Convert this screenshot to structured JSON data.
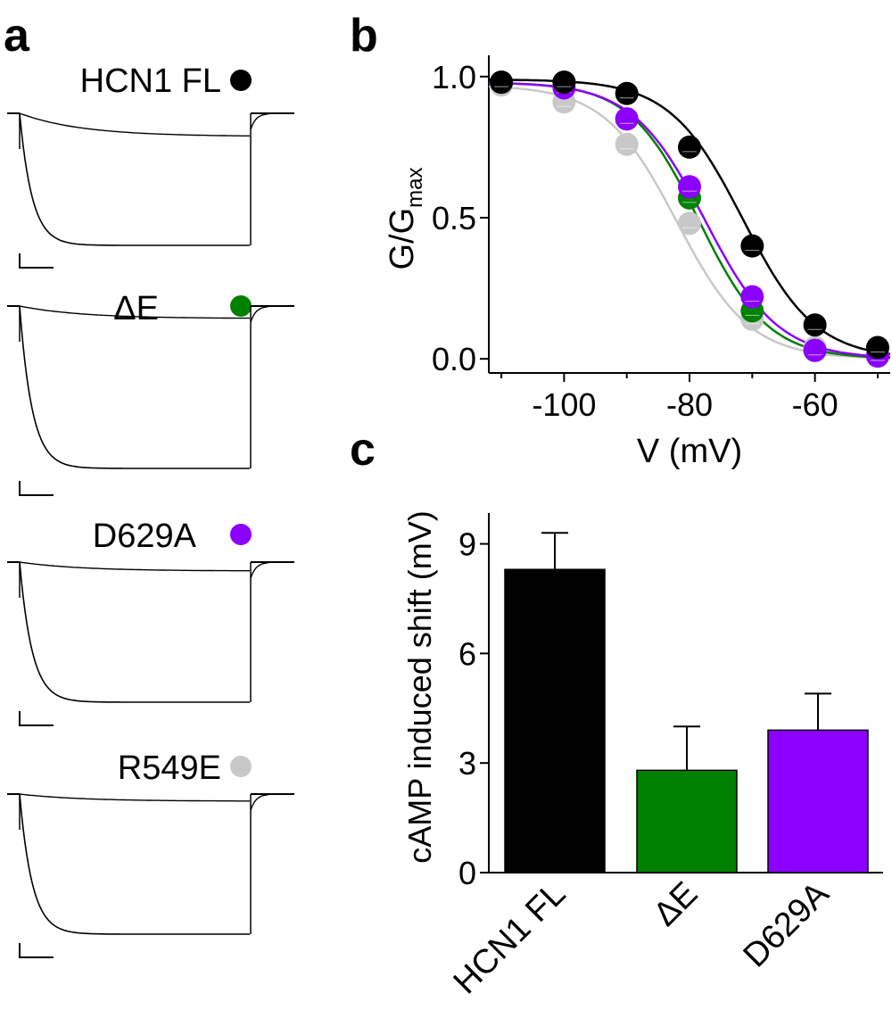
{
  "panels": {
    "a": "a",
    "b": "b",
    "c": "c"
  },
  "legend": [
    {
      "label": "HCN1 FL",
      "color": "#000000"
    },
    {
      "label": "ΔE",
      "color": "#008000"
    },
    {
      "label": "D629A",
      "color": "#8B00FF"
    },
    {
      "label": "R549E",
      "color": "#C8C8C8"
    }
  ],
  "chart_data": [
    {
      "type": "scatter",
      "panel": "b",
      "title": "",
      "xlabel": "V (mV)",
      "ylabel_main": "G/G",
      "ylabel_sub": "max",
      "xlim": [
        -112,
        -48
      ],
      "ylim": [
        -0.05,
        1.05
      ],
      "xticks": [
        -100,
        -80,
        -60
      ],
      "xtick_labels": [
        "-100",
        "-80",
        "-60"
      ],
      "yticks": [
        0.0,
        0.5,
        1.0
      ],
      "ytick_labels": [
        "0.0",
        "0.5",
        "1.0"
      ],
      "x": [
        -110,
        -100,
        -90,
        -80,
        -70,
        -60,
        -50
      ],
      "series": [
        {
          "name": "R549E",
          "color": "#C8C8C8",
          "values": [
            0.97,
            0.91,
            0.76,
            0.48,
            0.14,
            0.04,
            0.02
          ],
          "v_half": -82.0,
          "slope": 5.8,
          "top": 0.97
        },
        {
          "name": "ΔE",
          "color": "#008000",
          "values": [
            0.98,
            0.98,
            0.85,
            0.57,
            0.17,
            0.03,
            0.01
          ],
          "v_half": -78.5,
          "slope": 5.5,
          "top": 0.98
        },
        {
          "name": "D629A",
          "color": "#8B00FF",
          "values": [
            0.98,
            0.96,
            0.85,
            0.61,
            0.22,
            0.03,
            0.01
          ],
          "v_half": -77.5,
          "slope": 5.8,
          "top": 0.98
        },
        {
          "name": "HCN1 FL",
          "color": "#000000",
          "values": [
            0.98,
            0.98,
            0.94,
            0.75,
            0.4,
            0.12,
            0.04
          ],
          "v_half": -71.5,
          "slope": 5.8,
          "top": 0.99
        }
      ]
    },
    {
      "type": "bar",
      "panel": "c",
      "title": "",
      "xlabel": "",
      "ylabel": "cAMP induced shift (mV)",
      "categories": [
        "HCN1 FL",
        "ΔE",
        "D629A"
      ],
      "values": [
        8.3,
        2.8,
        3.9
      ],
      "errors": [
        1.0,
        1.2,
        1.0
      ],
      "colors": [
        "#000000",
        "#008000",
        "#8B00FF"
      ],
      "ylim": [
        0,
        9.6
      ],
      "yticks": [
        0,
        3,
        6,
        9
      ],
      "ytick_labels": [
        "0",
        "3",
        "6",
        "9"
      ]
    }
  ]
}
